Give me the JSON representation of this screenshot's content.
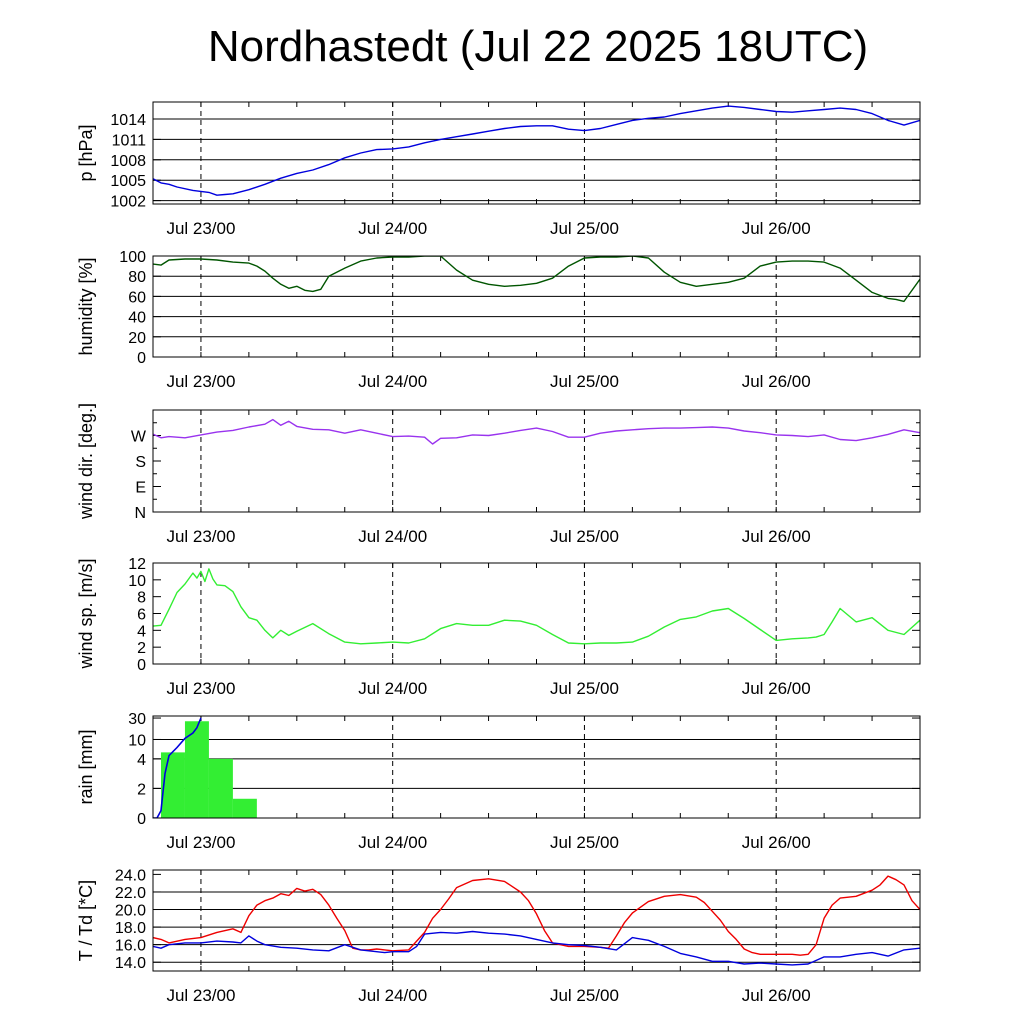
{
  "title": "Nordhastedt (Jul 22 2025 18UTC)",
  "time_axis": {
    "unit": "hours since Jul 22 18UTC",
    "range": [
      0,
      96
    ],
    "major_ticks": [
      {
        "t": 6,
        "label": "Jul 23/00"
      },
      {
        "t": 30,
        "label": "Jul 24/00"
      },
      {
        "t": 54,
        "label": "Jul 25/00"
      },
      {
        "t": 78,
        "label": "Jul 26/00"
      }
    ]
  },
  "colors": {
    "pressure": "#0000dd",
    "humidity": "#005500",
    "wind_dir": "#9933ee",
    "wind_speed": "#33ee33",
    "rain_bar": "#33ee33",
    "rain_cum": "#0000dd",
    "temperature": "#ee0000",
    "dewpoint": "#0000dd"
  },
  "chart_data": [
    {
      "type": "line",
      "ylabel": "p [hPa]",
      "ylim": [
        1001.5,
        1016.5
      ],
      "yticks": [
        {
          "v": 1002,
          "label": "1002"
        },
        {
          "v": 1005,
          "label": "1005"
        },
        {
          "v": 1008,
          "label": "1008"
        },
        {
          "v": 1011,
          "label": "1011"
        },
        {
          "v": 1014,
          "label": "1014"
        }
      ],
      "grid_lines": [
        1002,
        1005,
        1008,
        1011,
        1014
      ],
      "series": [
        {
          "color": "pressure",
          "x": [
            0,
            1,
            2,
            3,
            5,
            7,
            8,
            9,
            10,
            12,
            14,
            16,
            18,
            20,
            22,
            24,
            26,
            28,
            30,
            32,
            34,
            36,
            38,
            40,
            42,
            44,
            46,
            48,
            50,
            52,
            54,
            56,
            58,
            60,
            62,
            64,
            66,
            68,
            70,
            72,
            74,
            76,
            78,
            80,
            82,
            84,
            86,
            88,
            90,
            92,
            94,
            96
          ],
          "y": [
            1005.2,
            1004.6,
            1004.4,
            1004.0,
            1003.5,
            1003.2,
            1002.8,
            1002.9,
            1003.0,
            1003.6,
            1004.4,
            1005.3,
            1006.0,
            1006.5,
            1007.3,
            1008.3,
            1009.0,
            1009.5,
            1009.6,
            1009.9,
            1010.5,
            1011.0,
            1011.4,
            1011.8,
            1012.2,
            1012.6,
            1012.9,
            1013.0,
            1013.0,
            1012.5,
            1012.3,
            1012.6,
            1013.2,
            1013.8,
            1014.1,
            1014.3,
            1014.8,
            1015.2,
            1015.6,
            1015.9,
            1015.7,
            1015.4,
            1015.1,
            1015.0,
            1015.2,
            1015.4,
            1015.6,
            1015.4,
            1014.8,
            1013.8,
            1013.1,
            1013.8
          ]
        }
      ]
    },
    {
      "type": "line",
      "ylabel": "humidity [%]",
      "ylim": [
        0,
        100
      ],
      "yticks": [
        {
          "v": 0,
          "label": "0"
        },
        {
          "v": 20,
          "label": "20"
        },
        {
          "v": 40,
          "label": "40"
        },
        {
          "v": 60,
          "label": "60"
        },
        {
          "v": 80,
          "label": "80"
        },
        {
          "v": 100,
          "label": "100"
        }
      ],
      "grid_lines": [
        20,
        40,
        60,
        80
      ],
      "series": [
        {
          "color": "humidity",
          "x": [
            0,
            1,
            2,
            4,
            6,
            8,
            10,
            12,
            13,
            14,
            15,
            16,
            17,
            18,
            19,
            20,
            21,
            22,
            24,
            26,
            28,
            30,
            32,
            34,
            36,
            38,
            40,
            42,
            44,
            46,
            48,
            50,
            52,
            54,
            56,
            58,
            60,
            62,
            64,
            66,
            68,
            70,
            72,
            74,
            76,
            78,
            80,
            82,
            84,
            86,
            88,
            90,
            92,
            93,
            94,
            96
          ],
          "y": [
            92,
            91,
            96,
            97,
            97,
            96,
            94,
            93,
            90,
            85,
            78,
            72,
            68,
            70,
            66,
            65,
            67,
            80,
            88,
            95,
            98,
            99,
            99,
            100,
            100,
            86,
            76,
            72,
            70,
            71,
            73,
            78,
            90,
            98,
            99,
            99,
            100,
            98,
            84,
            74,
            70,
            72,
            74,
            78,
            90,
            94,
            95,
            95,
            94,
            88,
            76,
            64,
            58,
            57,
            55,
            77
          ]
        }
      ]
    },
    {
      "type": "line",
      "ylabel": "wind dir. [deg.]",
      "ylim": [
        0,
        360
      ],
      "yticks": [
        {
          "v": 0,
          "label": "N"
        },
        {
          "v": 90,
          "label": "E"
        },
        {
          "v": 180,
          "label": "S"
        },
        {
          "v": 270,
          "label": "W"
        }
      ],
      "grid_lines": [],
      "series": [
        {
          "color": "wind_dir",
          "x": [
            0,
            1,
            2,
            4,
            6,
            8,
            10,
            12,
            14,
            15,
            16,
            17,
            18,
            20,
            22,
            24,
            26,
            28,
            30,
            32,
            34,
            35,
            36,
            38,
            40,
            42,
            44,
            46,
            48,
            50,
            52,
            54,
            56,
            58,
            60,
            62,
            64,
            66,
            68,
            70,
            72,
            74,
            76,
            78,
            80,
            82,
            84,
            86,
            88,
            90,
            92,
            94,
            96
          ],
          "y": [
            275,
            262,
            266,
            262,
            272,
            282,
            288,
            300,
            310,
            326,
            306,
            320,
            302,
            292,
            290,
            278,
            290,
            278,
            266,
            268,
            264,
            240,
            260,
            262,
            272,
            270,
            278,
            288,
            296,
            284,
            264,
            264,
            278,
            286,
            290,
            294,
            296,
            296,
            298,
            300,
            296,
            286,
            280,
            272,
            270,
            266,
            272,
            256,
            252,
            262,
            274,
            290,
            280
          ]
        }
      ]
    },
    {
      "type": "line",
      "ylabel": "wind sp. [m/s]",
      "ylim": [
        0,
        12
      ],
      "yticks": [
        {
          "v": 0,
          "label": "0"
        },
        {
          "v": 2,
          "label": "2"
        },
        {
          "v": 4,
          "label": "4"
        },
        {
          "v": 6,
          "label": "6"
        },
        {
          "v": 8,
          "label": "8"
        },
        {
          "v": 10,
          "label": "10"
        },
        {
          "v": 12,
          "label": "12"
        }
      ],
      "grid_lines": [],
      "series": [
        {
          "color": "wind_speed",
          "x": [
            0,
            1,
            2,
            3,
            4,
            5,
            5.5,
            6,
            6.5,
            7,
            7.5,
            8,
            9,
            10,
            11,
            12,
            13,
            14,
            15,
            16,
            17,
            18,
            20,
            22,
            24,
            26,
            28,
            30,
            32,
            34,
            36,
            38,
            40,
            42,
            44,
            46,
            48,
            50,
            52,
            54,
            56,
            58,
            60,
            62,
            64,
            66,
            68,
            70,
            72,
            74,
            76,
            78,
            80,
            82,
            83,
            84,
            85,
            86,
            88,
            90,
            92,
            94,
            96
          ],
          "y": [
            4.5,
            4.6,
            6.5,
            8.5,
            9.5,
            10.8,
            10.2,
            11.0,
            9.8,
            11.3,
            10.1,
            9.4,
            9.3,
            8.6,
            6.8,
            5.5,
            5.2,
            4.0,
            3.1,
            4.0,
            3.4,
            3.9,
            4.8,
            3.6,
            2.6,
            2.4,
            2.5,
            2.6,
            2.5,
            3.0,
            4.2,
            4.8,
            4.6,
            4.6,
            5.2,
            5.1,
            4.6,
            3.5,
            2.5,
            2.4,
            2.5,
            2.5,
            2.6,
            3.3,
            4.4,
            5.3,
            5.6,
            6.3,
            6.6,
            5.4,
            4.1,
            2.8,
            3.0,
            3.1,
            3.2,
            3.5,
            5.0,
            6.6,
            5.0,
            5.5,
            4.0,
            3.5,
            5.2
          ]
        }
      ]
    },
    {
      "type": "bar",
      "ylabel": "rain [mm]",
      "ylim": [
        0,
        30
      ],
      "yticks": [
        {
          "v": 0,
          "label": "0"
        },
        {
          "v": 2,
          "label": "2"
        },
        {
          "v": 4,
          "label": "4"
        },
        {
          "v": 10,
          "label": "10"
        },
        {
          "v": 30,
          "label": "30"
        }
      ],
      "grid_lines": [
        2,
        4,
        10
      ],
      "bars": [
        {
          "t0": 1,
          "t1": 4,
          "value": 6
        },
        {
          "t0": 4,
          "t1": 7,
          "value": 27
        },
        {
          "t0": 7,
          "t1": 10,
          "value": 4
        },
        {
          "t0": 10,
          "t1": 13,
          "value": 1.3
        }
      ],
      "cumulative": {
        "color": "rain_cum",
        "x": [
          0,
          0.5,
          1,
          1.5,
          2,
          3,
          4,
          5,
          5.5,
          6
        ],
        "y": [
          0,
          0,
          0.5,
          3.0,
          5.0,
          7.5,
          11,
          16,
          21,
          30
        ]
      }
    },
    {
      "type": "line",
      "ylabel": "T / Td [*C]",
      "ylim": [
        13.0,
        24.5
      ],
      "yticks": [
        {
          "v": 14,
          "label": "14.0"
        },
        {
          "v": 16,
          "label": "16.0"
        },
        {
          "v": 18,
          "label": "18.0"
        },
        {
          "v": 20,
          "label": "20.0"
        },
        {
          "v": 22,
          "label": "22.0"
        },
        {
          "v": 24,
          "label": "24.0"
        }
      ],
      "grid_lines": [
        14,
        16,
        18,
        20,
        22
      ],
      "series": [
        {
          "name": "T",
          "color": "temperature",
          "x": [
            0,
            1,
            2,
            4,
            6,
            8,
            10,
            11,
            12,
            13,
            14,
            15,
            16,
            17,
            18,
            19,
            20,
            21,
            22,
            23,
            24,
            25,
            26,
            27,
            28,
            29,
            30,
            32,
            34,
            35,
            36,
            37,
            38,
            40,
            42,
            44,
            46,
            47,
            48,
            49,
            50,
            51,
            52,
            54,
            56,
            57,
            58,
            59,
            60,
            62,
            64,
            66,
            68,
            69,
            70,
            71,
            72,
            73,
            74,
            75,
            76,
            78,
            80,
            81,
            82,
            83,
            84,
            85,
            86,
            88,
            90,
            91,
            92,
            93,
            94,
            95,
            96
          ],
          "y": [
            16.8,
            16.6,
            16.2,
            16.6,
            16.8,
            17.4,
            17.8,
            17.4,
            19.3,
            20.5,
            21.0,
            21.3,
            21.8,
            21.6,
            22.4,
            22.1,
            22.3,
            21.7,
            20.5,
            19.0,
            17.6,
            15.6,
            15.4,
            15.4,
            15.5,
            15.4,
            15.3,
            15.4,
            17.4,
            19.0,
            20.0,
            21.2,
            22.5,
            23.3,
            23.5,
            23.2,
            22.0,
            21.0,
            19.5,
            17.6,
            16.2,
            16.0,
            15.8,
            15.8,
            15.7,
            15.6,
            17.0,
            18.5,
            19.6,
            20.9,
            21.5,
            21.7,
            21.4,
            20.8,
            19.8,
            18.8,
            17.5,
            16.6,
            15.5,
            15.1,
            14.9,
            14.9,
            14.9,
            14.8,
            14.9,
            16.0,
            19.0,
            20.5,
            21.3,
            21.5,
            22.2,
            22.8,
            23.8,
            23.4,
            22.8,
            21.0,
            20.0
          ]
        },
        {
          "name": "Td",
          "color": "dewpoint",
          "x": [
            0,
            1,
            2,
            4,
            6,
            8,
            10,
            11,
            12,
            13,
            14,
            16,
            18,
            20,
            22,
            24,
            26,
            28,
            29,
            30,
            32,
            33,
            34,
            36,
            38,
            40,
            42,
            44,
            46,
            48,
            50,
            52,
            54,
            56,
            58,
            60,
            62,
            64,
            66,
            68,
            70,
            72,
            74,
            76,
            78,
            80,
            82,
            84,
            86,
            88,
            90,
            92,
            94,
            96
          ],
          "y": [
            15.8,
            15.6,
            16.0,
            16.2,
            16.2,
            16.4,
            16.3,
            16.2,
            17.0,
            16.4,
            16.0,
            15.7,
            15.6,
            15.4,
            15.3,
            16.0,
            15.4,
            15.2,
            15.1,
            15.2,
            15.2,
            15.8,
            17.2,
            17.4,
            17.3,
            17.5,
            17.3,
            17.2,
            17.0,
            16.6,
            16.2,
            16.0,
            15.9,
            15.7,
            15.4,
            16.8,
            16.5,
            15.8,
            15.0,
            14.6,
            14.1,
            14.1,
            13.8,
            13.9,
            13.8,
            13.7,
            13.8,
            14.6,
            14.6,
            14.9,
            15.1,
            14.7,
            15.4,
            15.6
          ]
        }
      ]
    }
  ]
}
